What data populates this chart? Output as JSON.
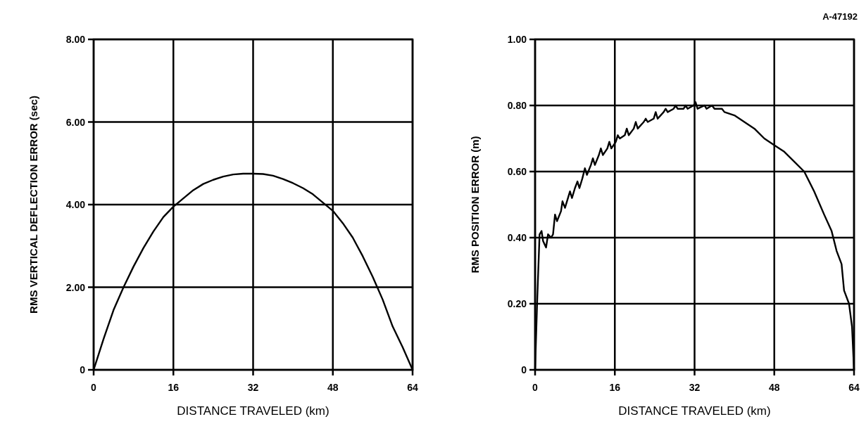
{
  "chart_data": [
    {
      "type": "line",
      "xlabel": "DISTANCE TRAVELED (km)",
      "ylabel": "RMS VERTICAL DEFLECTION ERROR (sec)",
      "xlim": [
        0,
        64
      ],
      "xticks": [
        0,
        16,
        32,
        48,
        64
      ],
      "ylim": [
        0,
        8
      ],
      "yticks": [
        0,
        {
          "value": 2,
          "label": "2.00"
        },
        {
          "value": 4,
          "label": "4.00"
        },
        {
          "value": 6,
          "label": "6.00"
        },
        {
          "value": 8,
          "label": "8.00"
        }
      ],
      "grid": true,
      "marker": "none",
      "line_style": "solid",
      "x": [
        0,
        2,
        4,
        6,
        8,
        10,
        12,
        14,
        16,
        18,
        20,
        22,
        24,
        26,
        28,
        30,
        32,
        34,
        36,
        38,
        40,
        42,
        44,
        46,
        48,
        50,
        52,
        54,
        56,
        58,
        60,
        62,
        64
      ],
      "series": [
        {
          "color": "#000000",
          "values": [
            0,
            0.75,
            1.45,
            2.0,
            2.5,
            2.95,
            3.35,
            3.7,
            3.95,
            4.15,
            4.35,
            4.5,
            4.6,
            4.68,
            4.73,
            4.75,
            4.75,
            4.74,
            4.7,
            4.62,
            4.52,
            4.4,
            4.25,
            4.05,
            3.85,
            3.55,
            3.2,
            2.75,
            2.25,
            1.7,
            1.05,
            0.55,
            0
          ]
        }
      ]
    },
    {
      "type": "line",
      "xlabel": "DISTANCE TRAVELED (km)",
      "ylabel": "RMS POSITION ERROR (m)",
      "annotations": [
        "A-47192"
      ],
      "xlim": [
        0,
        64
      ],
      "xticks": [
        0,
        16,
        32,
        48,
        64
      ],
      "ylim": [
        0,
        1
      ],
      "yticks": [
        0,
        {
          "value": 0.2,
          "label": "0.20"
        },
        {
          "value": 0.4,
          "label": "0.40"
        },
        {
          "value": 0.6,
          "label": "0.60"
        },
        {
          "value": 0.8,
          "label": "0.80"
        },
        {
          "value": 1,
          "label": "1.00"
        }
      ],
      "grid": true,
      "marker": "none",
      "line_style": "solid",
      "x": [
        0,
        0.4,
        0.9,
        1.3,
        1.6,
        2.2,
        2.6,
        3.2,
        3.6,
        4.0,
        4.4,
        5.2,
        5.5,
        6.0,
        6.6,
        7.0,
        7.4,
        8.0,
        8.5,
        8.9,
        9.5,
        10.0,
        10.4,
        11.2,
        11.6,
        12.0,
        12.8,
        13.2,
        13.6,
        14.5,
        14.9,
        15.3,
        16.2,
        16.6,
        17.0,
        18.0,
        18.4,
        18.8,
        19.8,
        20.2,
        20.6,
        21.8,
        22.2,
        22.6,
        23.8,
        24.2,
        24.6,
        25.8,
        26.2,
        26.6,
        27.8,
        28.2,
        28.6,
        29.8,
        30.2,
        30.6,
        31.8,
        32.2,
        32.6,
        34,
        34.4,
        35.5,
        36,
        37.5,
        38,
        40,
        42,
        44,
        46,
        48,
        50,
        52,
        54,
        56,
        58,
        59.5,
        60.5,
        61.5,
        62,
        63,
        63.6,
        64
      ],
      "series": [
        {
          "color": "#000000",
          "values": [
            0,
            0.2,
            0.41,
            0.42,
            0.39,
            0.37,
            0.41,
            0.4,
            0.41,
            0.47,
            0.45,
            0.48,
            0.51,
            0.49,
            0.52,
            0.54,
            0.52,
            0.55,
            0.57,
            0.55,
            0.58,
            0.61,
            0.59,
            0.62,
            0.64,
            0.62,
            0.65,
            0.67,
            0.65,
            0.67,
            0.69,
            0.67,
            0.69,
            0.71,
            0.7,
            0.71,
            0.73,
            0.71,
            0.73,
            0.75,
            0.73,
            0.75,
            0.76,
            0.75,
            0.76,
            0.78,
            0.76,
            0.78,
            0.79,
            0.78,
            0.79,
            0.8,
            0.79,
            0.79,
            0.8,
            0.79,
            0.8,
            0.81,
            0.79,
            0.8,
            0.79,
            0.8,
            0.79,
            0.79,
            0.78,
            0.77,
            0.75,
            0.73,
            0.7,
            0.68,
            0.66,
            0.63,
            0.6,
            0.54,
            0.47,
            0.42,
            0.36,
            0.32,
            0.24,
            0.2,
            0.13,
            0
          ]
        }
      ]
    }
  ]
}
